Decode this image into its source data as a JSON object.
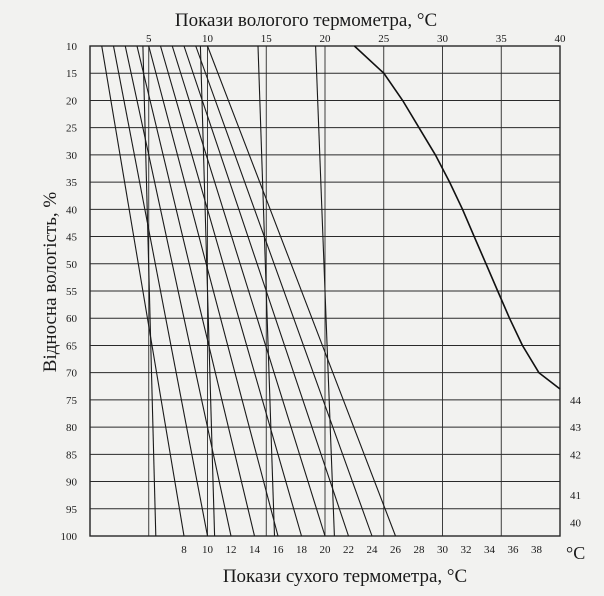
{
  "chart_data": {
    "type": "line",
    "top_title": "Покази вологого термометра, °C",
    "bottom_title": "Покази сухого термометра, °C",
    "y_title": "Відносна вологість, %",
    "unit_suffix": "°C",
    "wet_ticks": [
      "5",
      "10",
      "15",
      "20",
      "25",
      "30",
      "35",
      "40"
    ],
    "wet_tick_values": [
      5,
      10,
      15,
      20,
      25,
      30,
      35,
      40
    ],
    "dry_ticks": [
      "8",
      "10",
      "12",
      "14",
      "16",
      "18",
      "20",
      "22",
      "24",
      "26",
      "28",
      "30",
      "32",
      "34",
      "36",
      "38"
    ],
    "dry_tick_values": [
      8,
      10,
      12,
      14,
      16,
      18,
      20,
      22,
      24,
      26,
      28,
      30,
      32,
      34,
      36,
      38
    ],
    "right_ticks": [
      "44",
      "43",
      "42",
      "41",
      "40"
    ],
    "right_tick_humidity": [
      75,
      80,
      85,
      92.5,
      97.5
    ],
    "humidity_ticks": [
      "10",
      "15",
      "20",
      "25",
      "30",
      "35",
      "40",
      "45",
      "50",
      "55",
      "60",
      "65",
      "70",
      "75",
      "80",
      "85",
      "90",
      "95",
      "100"
    ],
    "humidity_values": [
      10,
      15,
      20,
      25,
      30,
      35,
      40,
      45,
      50,
      55,
      60,
      65,
      70,
      75,
      80,
      85,
      90,
      95,
      100
    ],
    "x_range": [
      0,
      40
    ],
    "y_range": [
      10,
      100
    ],
    "y_inverted": true,
    "grid": true,
    "dry_temperature_lines": [
      {
        "t": 1,
        "bottom_x": 8,
        "top_x": 1
      },
      {
        "t": 2,
        "bottom_x": 10,
        "top_x": 2
      },
      {
        "t": 3,
        "bottom_x": 12,
        "top_x": 3
      },
      {
        "t": 4,
        "bottom_x": 14,
        "top_x": 4
      },
      {
        "t": 5,
        "bottom_x": 16,
        "top_x": 5
      },
      {
        "t": 6,
        "bottom_x": 18,
        "top_x": 6
      },
      {
        "t": 7,
        "bottom_x": 20,
        "top_x": 7
      },
      {
        "t": 8,
        "bottom_x": 22,
        "top_x": 8
      },
      {
        "t": 9,
        "bottom_x": 24,
        "top_x": 9
      },
      {
        "t": 10,
        "bottom_x": 26,
        "top_x": 10
      }
    ],
    "wet_curves": [
      {
        "t": 5,
        "points": [
          [
            10,
            4.5
          ],
          [
            100,
            5.6
          ]
        ]
      },
      {
        "t": 10,
        "points": [
          [
            10,
            9.4
          ],
          [
            100,
            10.6
          ]
        ]
      },
      {
        "t": 15,
        "points": [
          [
            10,
            14.3
          ],
          [
            100,
            15.7
          ]
        ]
      },
      {
        "t": 20,
        "points": [
          [
            10,
            19.2
          ],
          [
            100,
            20.8
          ]
        ]
      }
    ],
    "boundary_curve": [
      [
        10,
        22.5
      ],
      [
        15,
        25
      ],
      [
        20,
        26.6
      ],
      [
        25,
        28
      ],
      [
        30,
        29.4
      ],
      [
        35,
        30.6
      ],
      [
        40,
        31.7
      ],
      [
        45,
        32.7
      ],
      [
        50,
        33.7
      ],
      [
        55,
        34.7
      ],
      [
        60,
        35.7
      ],
      [
        65,
        36.8
      ],
      [
        70,
        38.2
      ],
      [
        73,
        40
      ]
    ]
  }
}
